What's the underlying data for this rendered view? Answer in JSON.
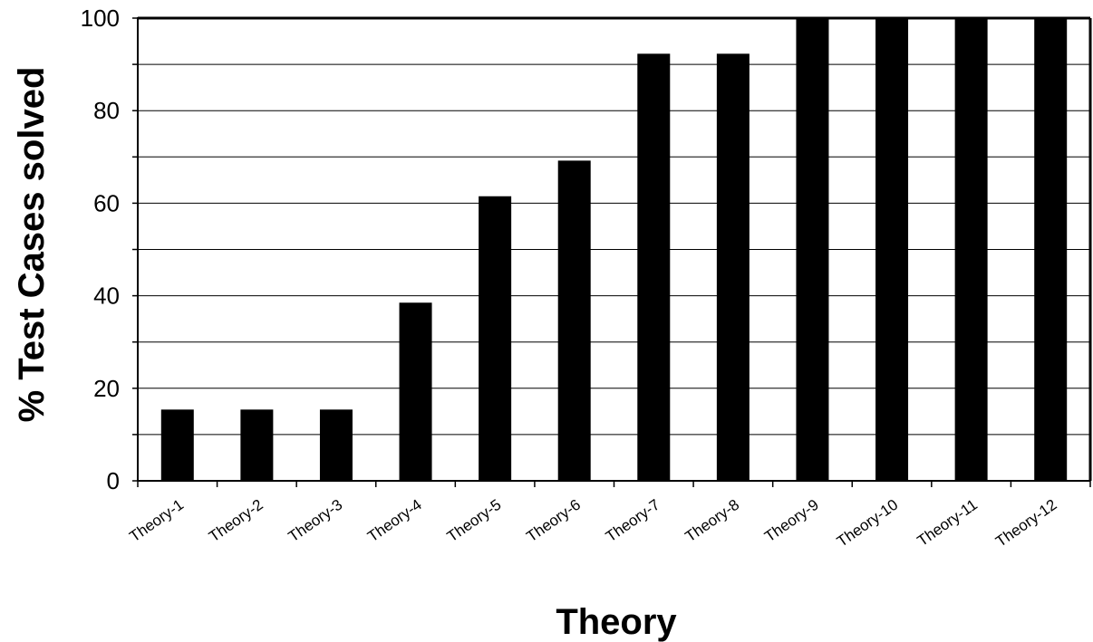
{
  "chart_data": {
    "type": "bar",
    "title": "",
    "xlabel": "Theory",
    "ylabel": "% Test Cases solved",
    "categories": [
      "Theory-1",
      "Theory-2",
      "Theory-3",
      "Theory-4",
      "Theory-5",
      "Theory-6",
      "Theory-7",
      "Theory-8",
      "Theory-9",
      "Theory-10",
      "Theory-11",
      "Theory-12"
    ],
    "values": [
      15.4,
      15.4,
      15.4,
      38.5,
      61.5,
      69.2,
      92.3,
      92.3,
      100,
      100,
      100,
      100
    ],
    "ylim": [
      0,
      100
    ],
    "yticks": [
      0,
      20,
      40,
      60,
      80,
      100
    ],
    "grid": true,
    "legend": "none",
    "bar_color": "#000000"
  }
}
